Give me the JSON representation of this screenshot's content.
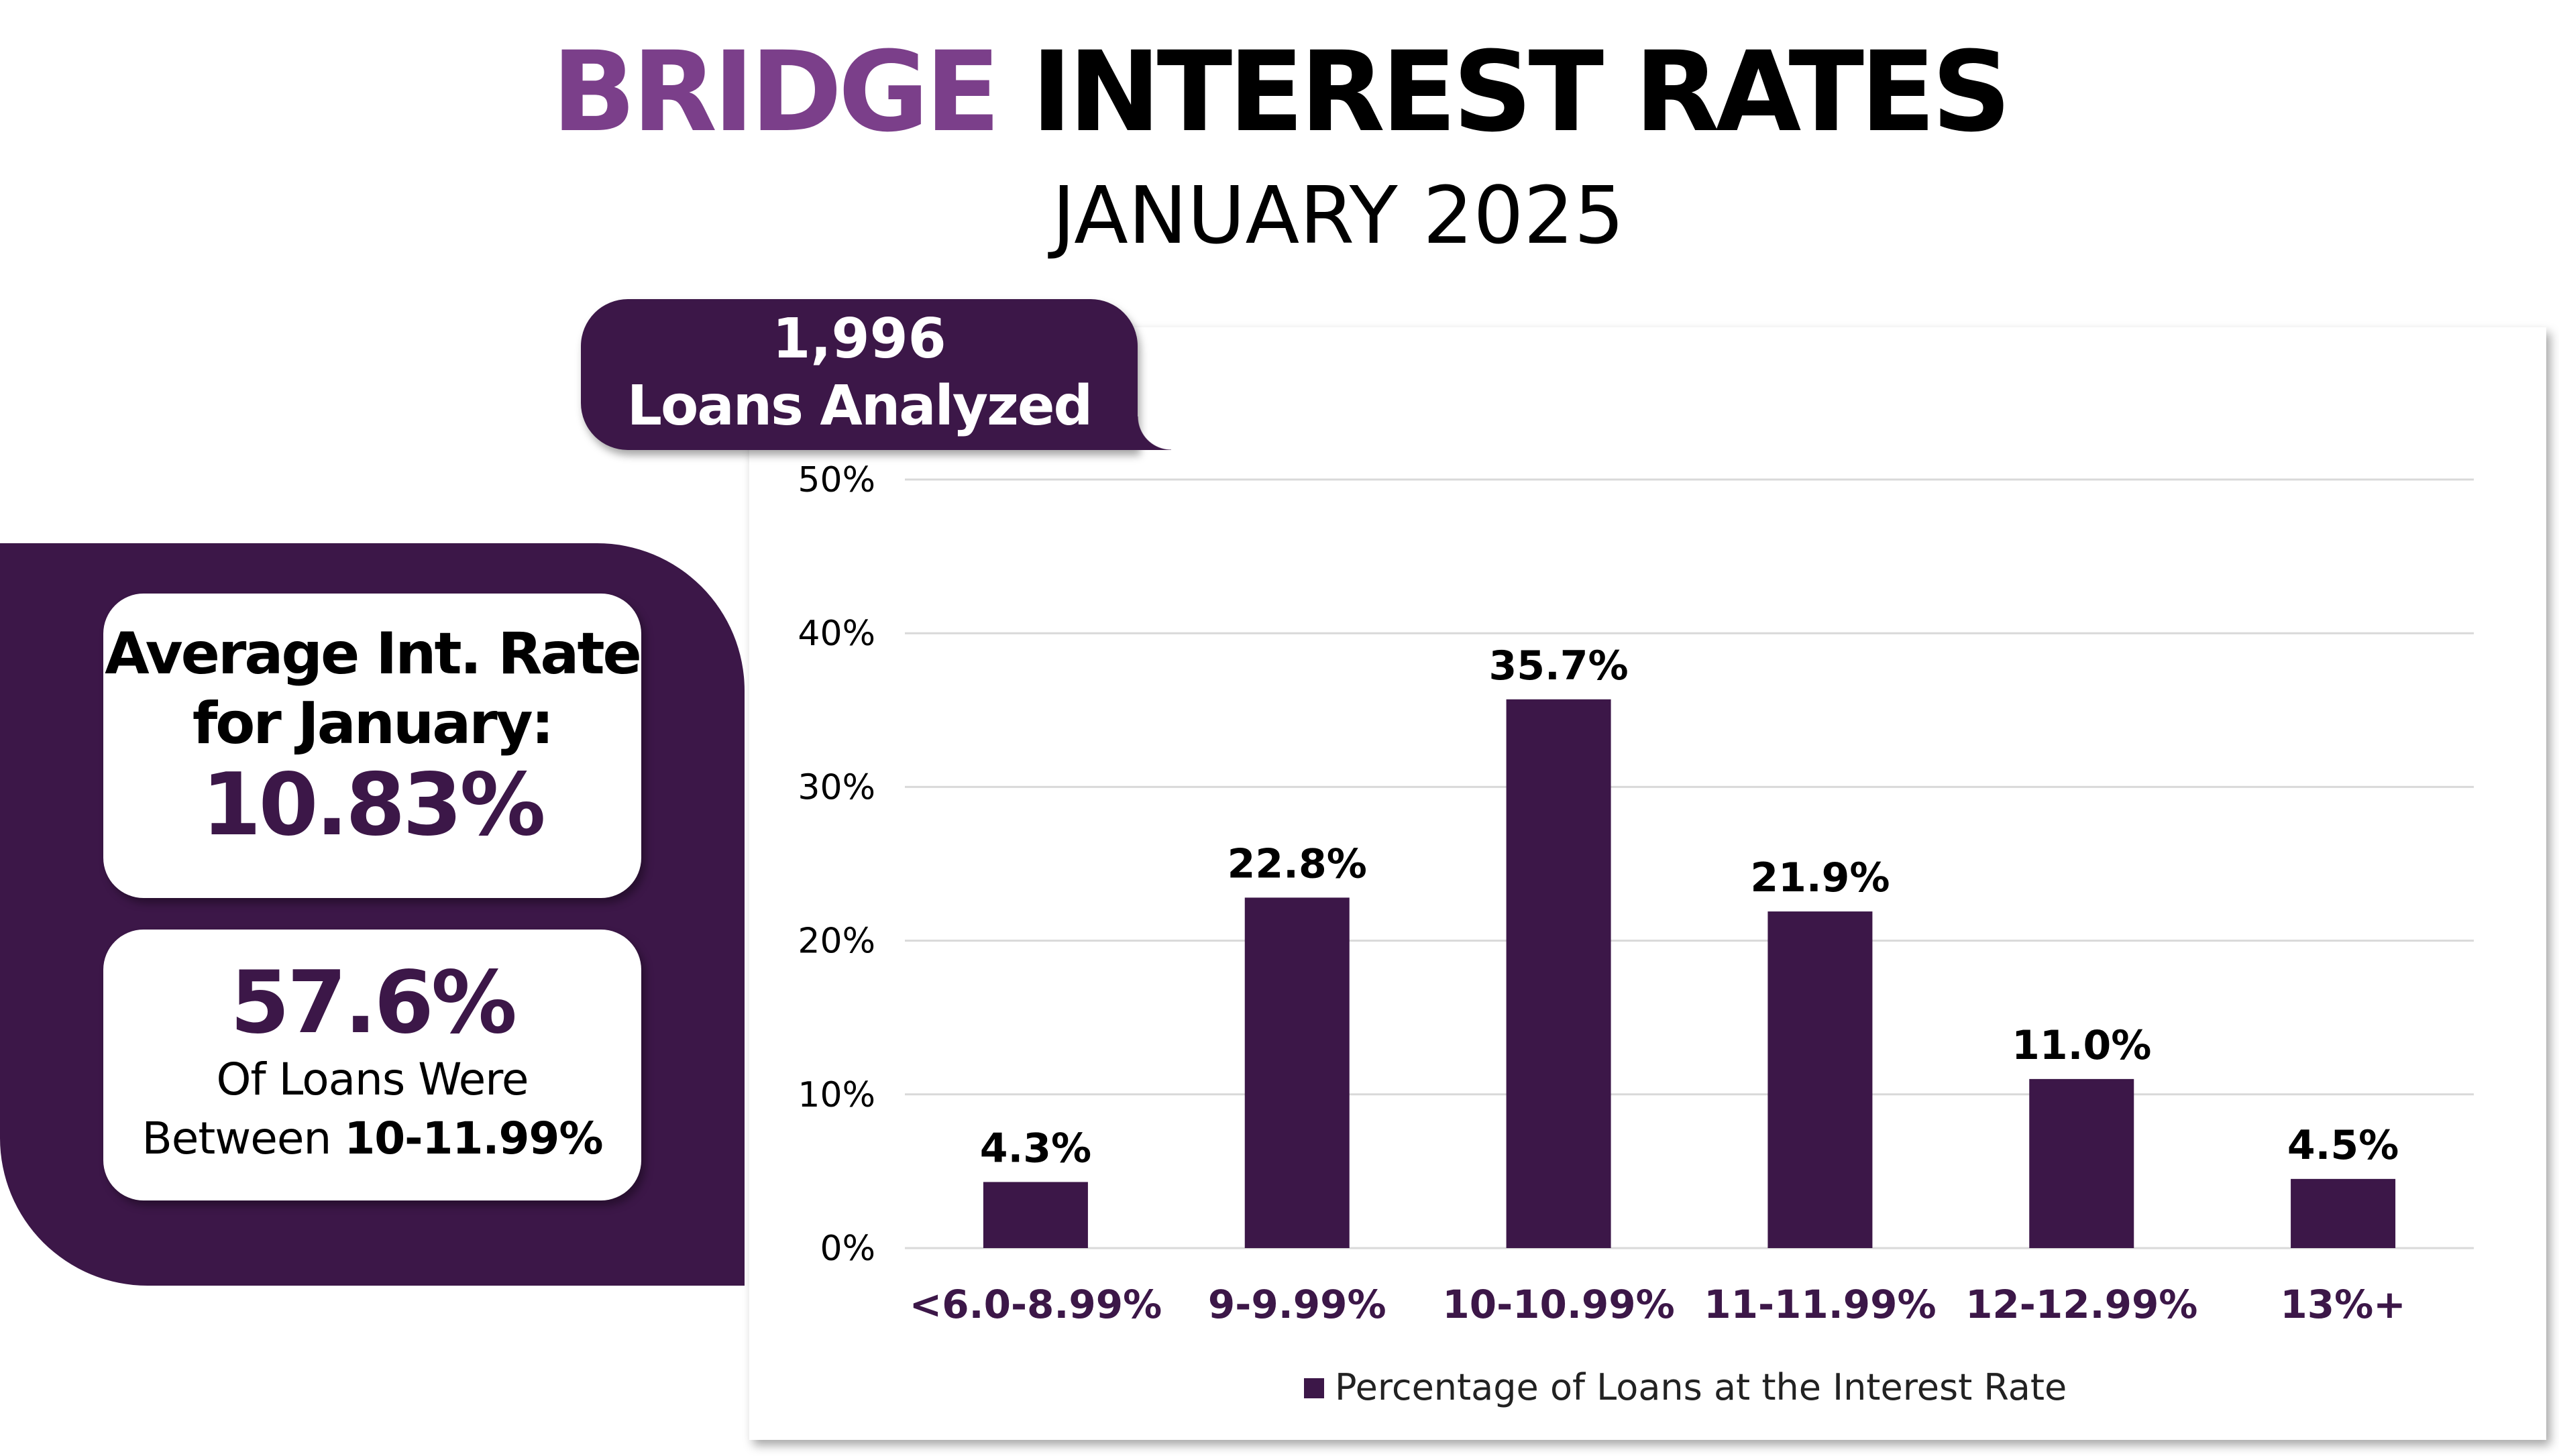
{
  "header": {
    "title_accent": "BRIDGE",
    "title_rest": "INTEREST RATES",
    "subtitle": "JANUARY 2025"
  },
  "badge": {
    "count": "1,996",
    "label": "Loans Analyzed"
  },
  "stats": {
    "avg_label_line1": "Average Int. Rate",
    "avg_label_line2": "for January:",
    "avg_value": "10.83%",
    "share_value": "57.6%",
    "share_line1": "Of Loans Were",
    "share_line2_prefix": "Between",
    "share_line2_range": "10-11.99%"
  },
  "colors": {
    "bar": "#3c1748",
    "accent": "#7b3f8a",
    "category_label": "#3c1748"
  },
  "chart_data": {
    "type": "bar",
    "categories": [
      "<6.0-8.99%",
      "9-9.99%",
      "10-10.99%",
      "11-11.99%",
      "12-12.99%",
      "13%+"
    ],
    "series": [
      {
        "name": "Percentage of Loans at the Interest Rate",
        "values": [
          4.3,
          22.8,
          35.7,
          21.9,
          11.0,
          4.5
        ]
      }
    ],
    "data_labels": [
      "4.3%",
      "22.8%",
      "35.7%",
      "21.9%",
      "11.0%",
      "4.5%"
    ],
    "ylim": [
      0,
      50
    ],
    "yticks": [
      "0%",
      "10%",
      "20%",
      "30%",
      "40%",
      "50%"
    ],
    "grid": true,
    "legend": "bottom"
  }
}
